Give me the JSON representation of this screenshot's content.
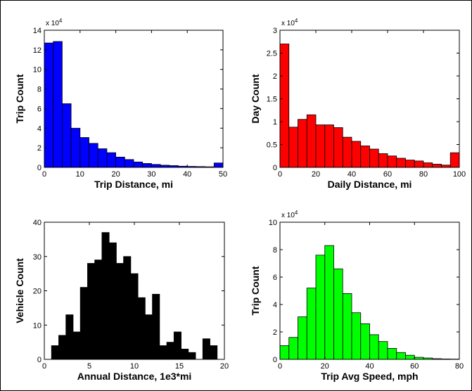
{
  "chart_data": [
    {
      "type": "bar",
      "xlabel": "Trip Distance, mi",
      "ylabel": "Trip Count",
      "multiplier": "x 10",
      "multiplier_exp": "4",
      "color": "#0000ff",
      "xlim": [
        0,
        50
      ],
      "ylim": [
        0,
        14
      ],
      "xticks": [
        "0",
        "10",
        "20",
        "30",
        "40",
        "50"
      ],
      "yticks": [
        "0",
        "2",
        "4",
        "6",
        "8",
        "10",
        "12",
        "14"
      ],
      "bin_width": 2.5,
      "x": [
        0,
        2.5,
        5,
        7.5,
        10,
        12.5,
        15,
        17.5,
        20,
        22.5,
        25,
        27.5,
        30,
        32.5,
        35,
        37.5,
        40,
        42.5,
        45,
        47.5
      ],
      "values": [
        12.7,
        12.85,
        6.5,
        4.0,
        3.05,
        2.45,
        1.9,
        1.5,
        1.05,
        0.8,
        0.55,
        0.4,
        0.3,
        0.22,
        0.18,
        0.12,
        0.1,
        0.08,
        0.06,
        0.45
      ]
    },
    {
      "type": "bar",
      "xlabel": "Daily Distance, mi",
      "ylabel": "Day Count",
      "multiplier": "x 10",
      "multiplier_exp": "4",
      "color": "#ff0000",
      "xlim": [
        0,
        100
      ],
      "ylim": [
        0,
        3
      ],
      "xticks": [
        "0",
        "20",
        "40",
        "60",
        "80",
        "100"
      ],
      "yticks": [
        "0",
        "0.5",
        "1",
        "1.5",
        "2",
        "2.5",
        "3"
      ],
      "bin_width": 5,
      "x": [
        0,
        5,
        10,
        15,
        20,
        25,
        30,
        35,
        40,
        45,
        50,
        55,
        60,
        65,
        70,
        75,
        80,
        85,
        90,
        95
      ],
      "values": [
        2.7,
        0.88,
        1.05,
        1.15,
        0.93,
        0.93,
        0.87,
        0.66,
        0.57,
        0.47,
        0.4,
        0.3,
        0.25,
        0.2,
        0.16,
        0.14,
        0.1,
        0.07,
        0.05,
        0.32
      ]
    },
    {
      "type": "bar",
      "xlabel": "Annual Distance, 1e3*mi",
      "ylabel": "Vehicle Count",
      "multiplier": "",
      "multiplier_exp": "",
      "color": "#000000",
      "xlim": [
        0,
        20
      ],
      "ylim": [
        0,
        40
      ],
      "xticks": [
        "0",
        "5",
        "10",
        "15",
        "20"
      ],
      "yticks": [
        "0",
        "10",
        "20",
        "30",
        "40"
      ],
      "bin_width": 0.8,
      "x": [
        0.8,
        1.6,
        2.4,
        3.2,
        4.0,
        4.8,
        5.6,
        6.4,
        7.2,
        8.0,
        8.8,
        9.6,
        10.4,
        11.2,
        12.0,
        12.8,
        13.6,
        14.4,
        15.2,
        16.0,
        16.8,
        17.6,
        18.4,
        19.2
      ],
      "values": [
        4,
        7,
        13,
        8,
        21,
        28,
        29,
        37,
        34,
        28,
        30,
        25,
        18,
        13,
        19,
        4,
        5,
        8,
        3,
        2,
        0,
        6,
        4,
        0
      ]
    },
    {
      "type": "bar",
      "xlabel": "Trip Avg Speed, mph",
      "ylabel": "Trip Count",
      "multiplier": "x 10",
      "multiplier_exp": "4",
      "color": "#00ff00",
      "xlim": [
        0,
        80
      ],
      "ylim": [
        0,
        10
      ],
      "xticks": [
        "0",
        "20",
        "40",
        "60",
        "80"
      ],
      "yticks": [
        "0",
        "2",
        "4",
        "6",
        "8",
        "10"
      ],
      "bin_width": 4,
      "x": [
        0,
        4,
        8,
        12,
        16,
        20,
        24,
        28,
        32,
        36,
        40,
        44,
        48,
        52,
        56,
        60,
        64,
        68,
        72,
        76
      ],
      "values": [
        1.0,
        1.6,
        3.1,
        5.2,
        7.6,
        8.3,
        6.6,
        4.8,
        3.4,
        2.6,
        1.8,
        1.3,
        0.8,
        0.5,
        0.3,
        0.15,
        0.1,
        0.05,
        0.03,
        0.02
      ]
    }
  ]
}
